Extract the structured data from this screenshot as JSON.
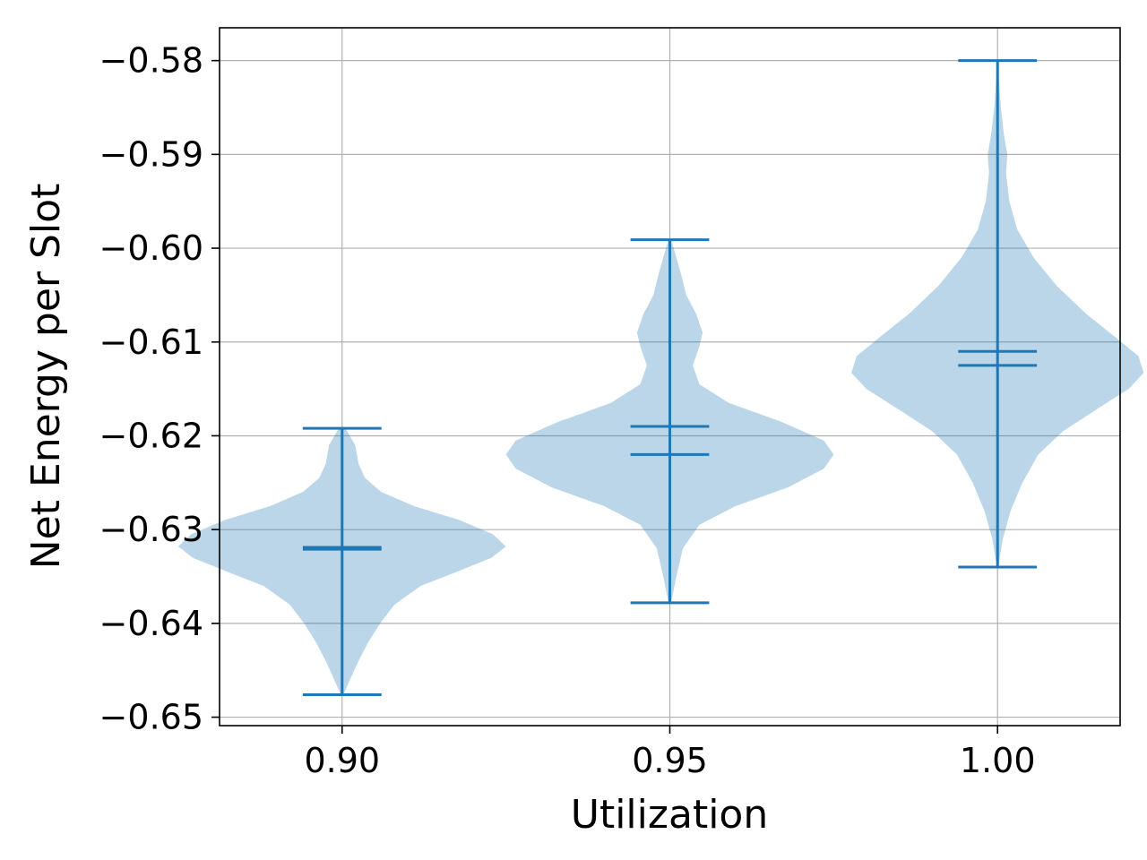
{
  "chart_data": {
    "type": "violin",
    "xlabel": "Utilization",
    "ylabel": "Net Energy per Slot",
    "x_ticks": [
      "0.90",
      "0.95",
      "1.00"
    ],
    "y_ticks": [
      "−0.58",
      "−0.59",
      "−0.60",
      "−0.61",
      "−0.62",
      "−0.63",
      "−0.64",
      "−0.65"
    ],
    "y_tick_values": [
      -0.58,
      -0.59,
      -0.6,
      -0.61,
      -0.62,
      -0.63,
      -0.64,
      -0.65
    ],
    "xlim": [
      0.8813,
      1.0187
    ],
    "ylim": [
      -0.6509,
      -0.5765
    ],
    "grid": true,
    "violins": [
      {
        "x": 0.9,
        "min": -0.6476,
        "max": -0.6192,
        "mean": -0.6319,
        "median": -0.6321,
        "density": [
          [
            -0.6476,
            0.0002
          ],
          [
            -0.646,
            0.0012
          ],
          [
            -0.644,
            0.0025
          ],
          [
            -0.642,
            0.004
          ],
          [
            -0.64,
            0.0058
          ],
          [
            -0.638,
            0.008
          ],
          [
            -0.636,
            0.012
          ],
          [
            -0.6345,
            0.0175
          ],
          [
            -0.633,
            0.0228
          ],
          [
            -0.6318,
            0.025
          ],
          [
            -0.6305,
            0.023
          ],
          [
            -0.629,
            0.018
          ],
          [
            -0.6275,
            0.011
          ],
          [
            -0.626,
            0.006
          ],
          [
            -0.6245,
            0.0035
          ],
          [
            -0.623,
            0.0025
          ],
          [
            -0.621,
            0.002
          ],
          [
            -0.6192,
            0.0005
          ]
        ]
      },
      {
        "x": 0.95,
        "min": -0.6378,
        "max": -0.5991,
        "mean": -0.619,
        "median": -0.622,
        "density": [
          [
            -0.6378,
            0.0002
          ],
          [
            -0.635,
            0.001
          ],
          [
            -0.632,
            0.002
          ],
          [
            -0.6295,
            0.0045
          ],
          [
            -0.6275,
            0.01
          ],
          [
            -0.6255,
            0.018
          ],
          [
            -0.6235,
            0.0235
          ],
          [
            -0.622,
            0.025
          ],
          [
            -0.6205,
            0.0235
          ],
          [
            -0.6185,
            0.017
          ],
          [
            -0.6165,
            0.009
          ],
          [
            -0.6145,
            0.0045
          ],
          [
            -0.6125,
            0.0035
          ],
          [
            -0.6105,
            0.0045
          ],
          [
            -0.609,
            0.005
          ],
          [
            -0.607,
            0.004
          ],
          [
            -0.605,
            0.0025
          ],
          [
            -0.603,
            0.0018
          ],
          [
            -0.601,
            0.001
          ],
          [
            -0.5991,
            0.0002
          ]
        ]
      },
      {
        "x": 1.0,
        "min": -0.634,
        "max": -0.58,
        "mean": -0.611,
        "median": -0.6125,
        "density": [
          [
            -0.634,
            0.0001
          ],
          [
            -0.631,
            0.0008
          ],
          [
            -0.628,
            0.002
          ],
          [
            -0.625,
            0.0038
          ],
          [
            -0.622,
            0.0062
          ],
          [
            -0.6195,
            0.01
          ],
          [
            -0.617,
            0.0155
          ],
          [
            -0.615,
            0.02
          ],
          [
            -0.6133,
            0.0223
          ],
          [
            -0.6115,
            0.0215
          ],
          [
            -0.6095,
            0.018
          ],
          [
            -0.607,
            0.0135
          ],
          [
            -0.604,
            0.009
          ],
          [
            -0.601,
            0.0055
          ],
          [
            -0.598,
            0.003
          ],
          [
            -0.595,
            0.0018
          ],
          [
            -0.592,
            0.0013
          ],
          [
            -0.59,
            0.0015
          ],
          [
            -0.588,
            0.001
          ],
          [
            -0.585,
            0.0005
          ],
          [
            -0.582,
            0.0002
          ],
          [
            -0.58,
            0.0001
          ]
        ]
      }
    ],
    "colors": {
      "line": "#1f77b4",
      "body": "#1f77b4",
      "grid": "#b0b0b0",
      "axis": "#000000",
      "background": "#ffffff"
    }
  }
}
